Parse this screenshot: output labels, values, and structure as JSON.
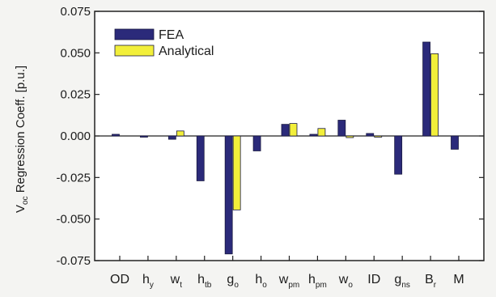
{
  "chart_data": {
    "type": "bar",
    "ylabel": {
      "main": "V",
      "sub": "oc",
      "rest": " Regression Coeff. [p.u.]"
    },
    "ylim": [
      -0.075,
      0.075
    ],
    "yticks": [
      {
        "value": -0.075,
        "label": "-0.075"
      },
      {
        "value": -0.05,
        "label": "-0.050"
      },
      {
        "value": -0.025,
        "label": "-0.025"
      },
      {
        "value": 0.0,
        "label": "0.000"
      },
      {
        "value": 0.025,
        "label": "0.025"
      },
      {
        "value": 0.05,
        "label": "0.050"
      },
      {
        "value": 0.075,
        "label": "0.075"
      }
    ],
    "categories": [
      {
        "main": "OD",
        "sub": ""
      },
      {
        "main": "h",
        "sub": "y"
      },
      {
        "main": "w",
        "sub": "t"
      },
      {
        "main": "h",
        "sub": "tb"
      },
      {
        "main": "g",
        "sub": "o"
      },
      {
        "main": "h",
        "sub": "o"
      },
      {
        "main": "w",
        "sub": "pm"
      },
      {
        "main": "h",
        "sub": "pm"
      },
      {
        "main": "w",
        "sub": "o"
      },
      {
        "main": "ID",
        "sub": ""
      },
      {
        "main": "g",
        "sub": "ns"
      },
      {
        "main": "B",
        "sub": "r"
      },
      {
        "main": "M",
        "sub": ""
      }
    ],
    "series": [
      {
        "name": "FEA",
        "color": "#2b2a7a",
        "values": [
          0.001,
          -0.0005,
          -0.002,
          -0.027,
          -0.071,
          -0.009,
          0.007,
          0.001,
          0.0095,
          0.0015,
          -0.023,
          0.0565,
          -0.008
        ]
      },
      {
        "name": "Analytical",
        "color": "#f2ef3a",
        "values": [
          0.0,
          0.0,
          0.003,
          0.0,
          -0.0445,
          0.0,
          0.0075,
          0.0045,
          -0.001,
          -0.0005,
          0.0,
          0.0495,
          0.0
        ]
      }
    ],
    "legend_position": "top-left",
    "grid": false
  }
}
